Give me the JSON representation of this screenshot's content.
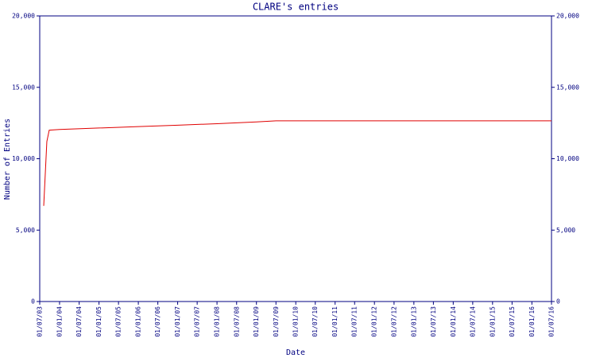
{
  "chart_data": {
    "type": "line",
    "title": "CLARE's entries",
    "x_label": "Date",
    "y_label": "Number of Entries",
    "x": [
      "07/08/03",
      "05/09/03",
      "27/09/03",
      "01/01/04",
      "01/01/05",
      "01/01/06",
      "01/01/07",
      "01/01/08",
      "01/01/09",
      "01/07/09",
      "01/01/12",
      "01/07/16"
    ],
    "series": [
      {
        "name": "CLARE",
        "color": "#e00000",
        "values": [
          6700,
          11200,
          12000,
          12050,
          12150,
          12250,
          12350,
          12450,
          12580,
          12650,
          12650,
          12650
        ]
      }
    ],
    "xlim": [
      "01/07/03",
      "01/07/16"
    ],
    "xticks": [
      "01/07/03",
      "01/01/04",
      "01/07/04",
      "01/01/05",
      "01/07/05",
      "01/01/06",
      "01/07/06",
      "01/01/07",
      "01/07/07",
      "01/01/08",
      "01/07/08",
      "01/01/09",
      "01/07/09",
      "01/01/10",
      "01/07/10",
      "01/01/11",
      "01/07/11",
      "01/01/12",
      "01/07/12",
      "01/01/13",
      "01/07/13",
      "01/01/14",
      "01/07/14",
      "01/01/15",
      "01/07/15",
      "01/01/16",
      "01/07/16"
    ],
    "ylim": [
      0,
      20000
    ],
    "yticks": [
      0,
      {
        "value": 5000,
        "label": "5,000"
      },
      {
        "value": 10000,
        "label": "10,000"
      },
      {
        "value": 15000,
        "label": "15,000"
      },
      {
        "value": 20000,
        "label": "20,000"
      }
    ],
    "right_axis": true,
    "grid": false
  }
}
